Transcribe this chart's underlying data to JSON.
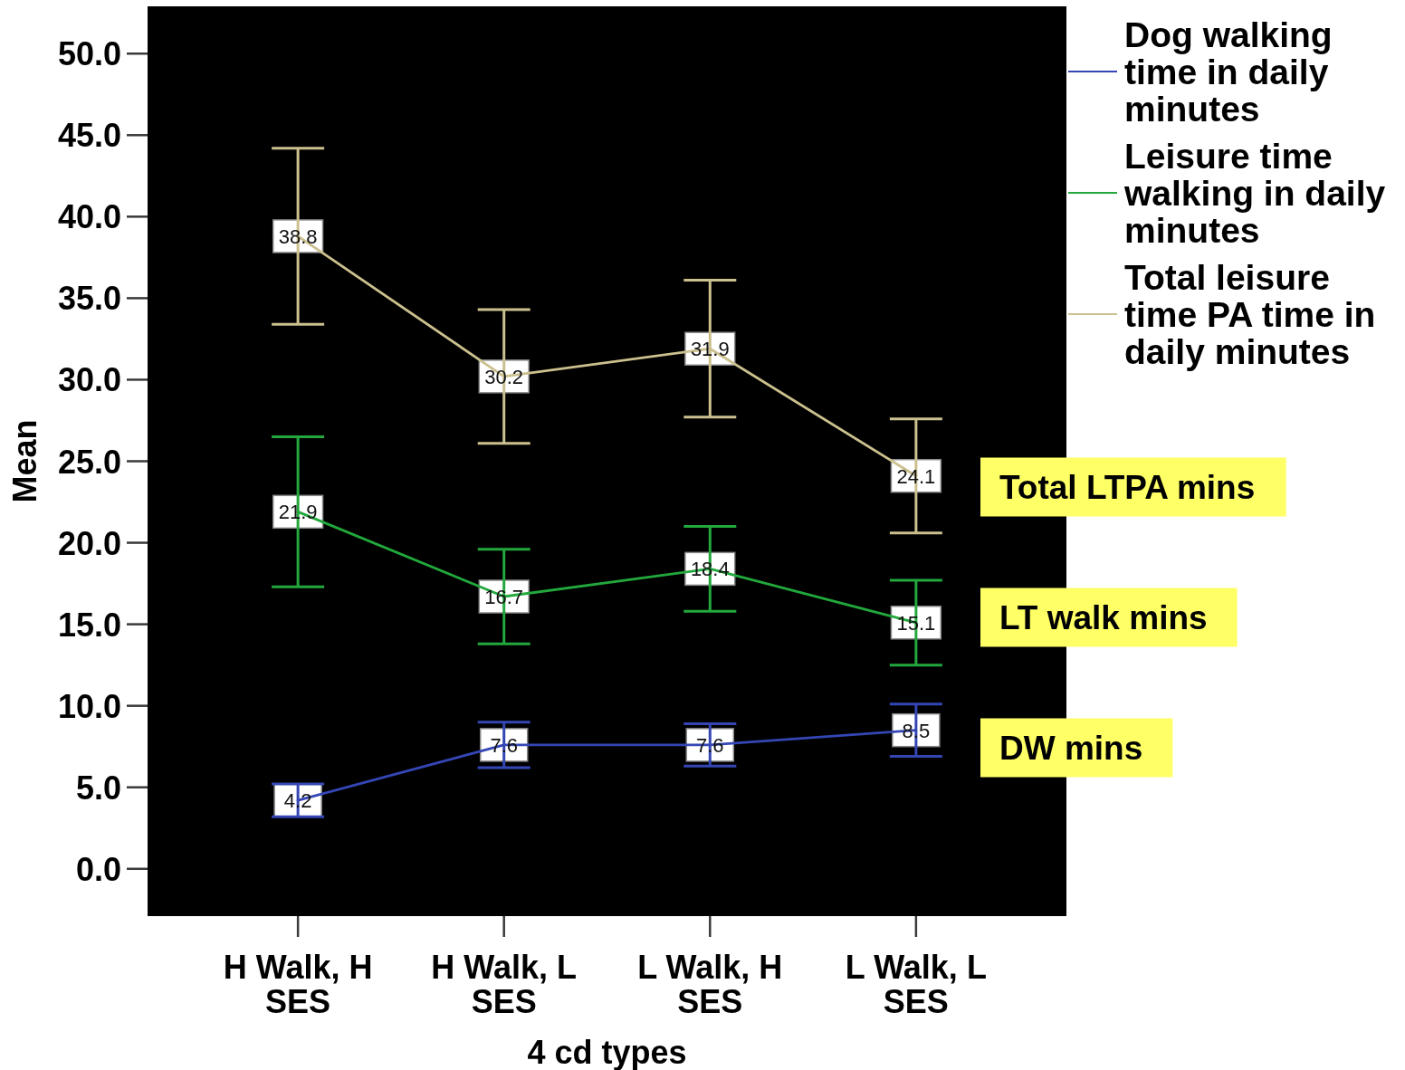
{
  "chart_data": {
    "type": "line",
    "categories": [
      "H Walk, H SES",
      "H Walk, L SES",
      "L Walk, H SES",
      "L Walk, L SES"
    ],
    "series": [
      {
        "name": "Dog walking time in daily minutes",
        "color": "#3446b4",
        "values": [
          4.2,
          7.6,
          7.6,
          8.5
        ],
        "errors": [
          1.0,
          1.4,
          1.3,
          1.6
        ]
      },
      {
        "name": "Leisure time walking in daily minutes",
        "color": "#22a83c",
        "values": [
          21.9,
          16.7,
          18.4,
          15.1
        ],
        "errors": [
          4.6,
          2.9,
          2.6,
          2.6
        ]
      },
      {
        "name": "Total leisure time PA time in daily minutes",
        "color": "#cbc08e",
        "values": [
          38.8,
          30.2,
          31.9,
          24.1
        ],
        "errors": [
          5.4,
          4.1,
          4.2,
          3.5
        ]
      }
    ],
    "xlabel": "4 cd types",
    "ylabel": "Mean",
    "ylim": [
      -2.9,
      52.9
    ],
    "yticks": [
      {
        "value": 0,
        "label": "0.0"
      },
      {
        "value": 5,
        "label": "5.0"
      },
      {
        "value": 10,
        "label": "10.0"
      },
      {
        "value": 15,
        "label": "15.0"
      },
      {
        "value": 20,
        "label": "20.0"
      },
      {
        "value": 25,
        "label": "25.0"
      },
      {
        "value": 30,
        "label": "30.0"
      },
      {
        "value": 35,
        "label": "35.0"
      },
      {
        "value": 40,
        "label": "40.0"
      },
      {
        "value": 45,
        "label": "45.0"
      },
      {
        "value": 50,
        "label": "50.0"
      }
    ],
    "data_labels": true,
    "legend": "right",
    "annotations": [
      "Total LTPA mins",
      "LT walk mins",
      "DW mins"
    ]
  }
}
